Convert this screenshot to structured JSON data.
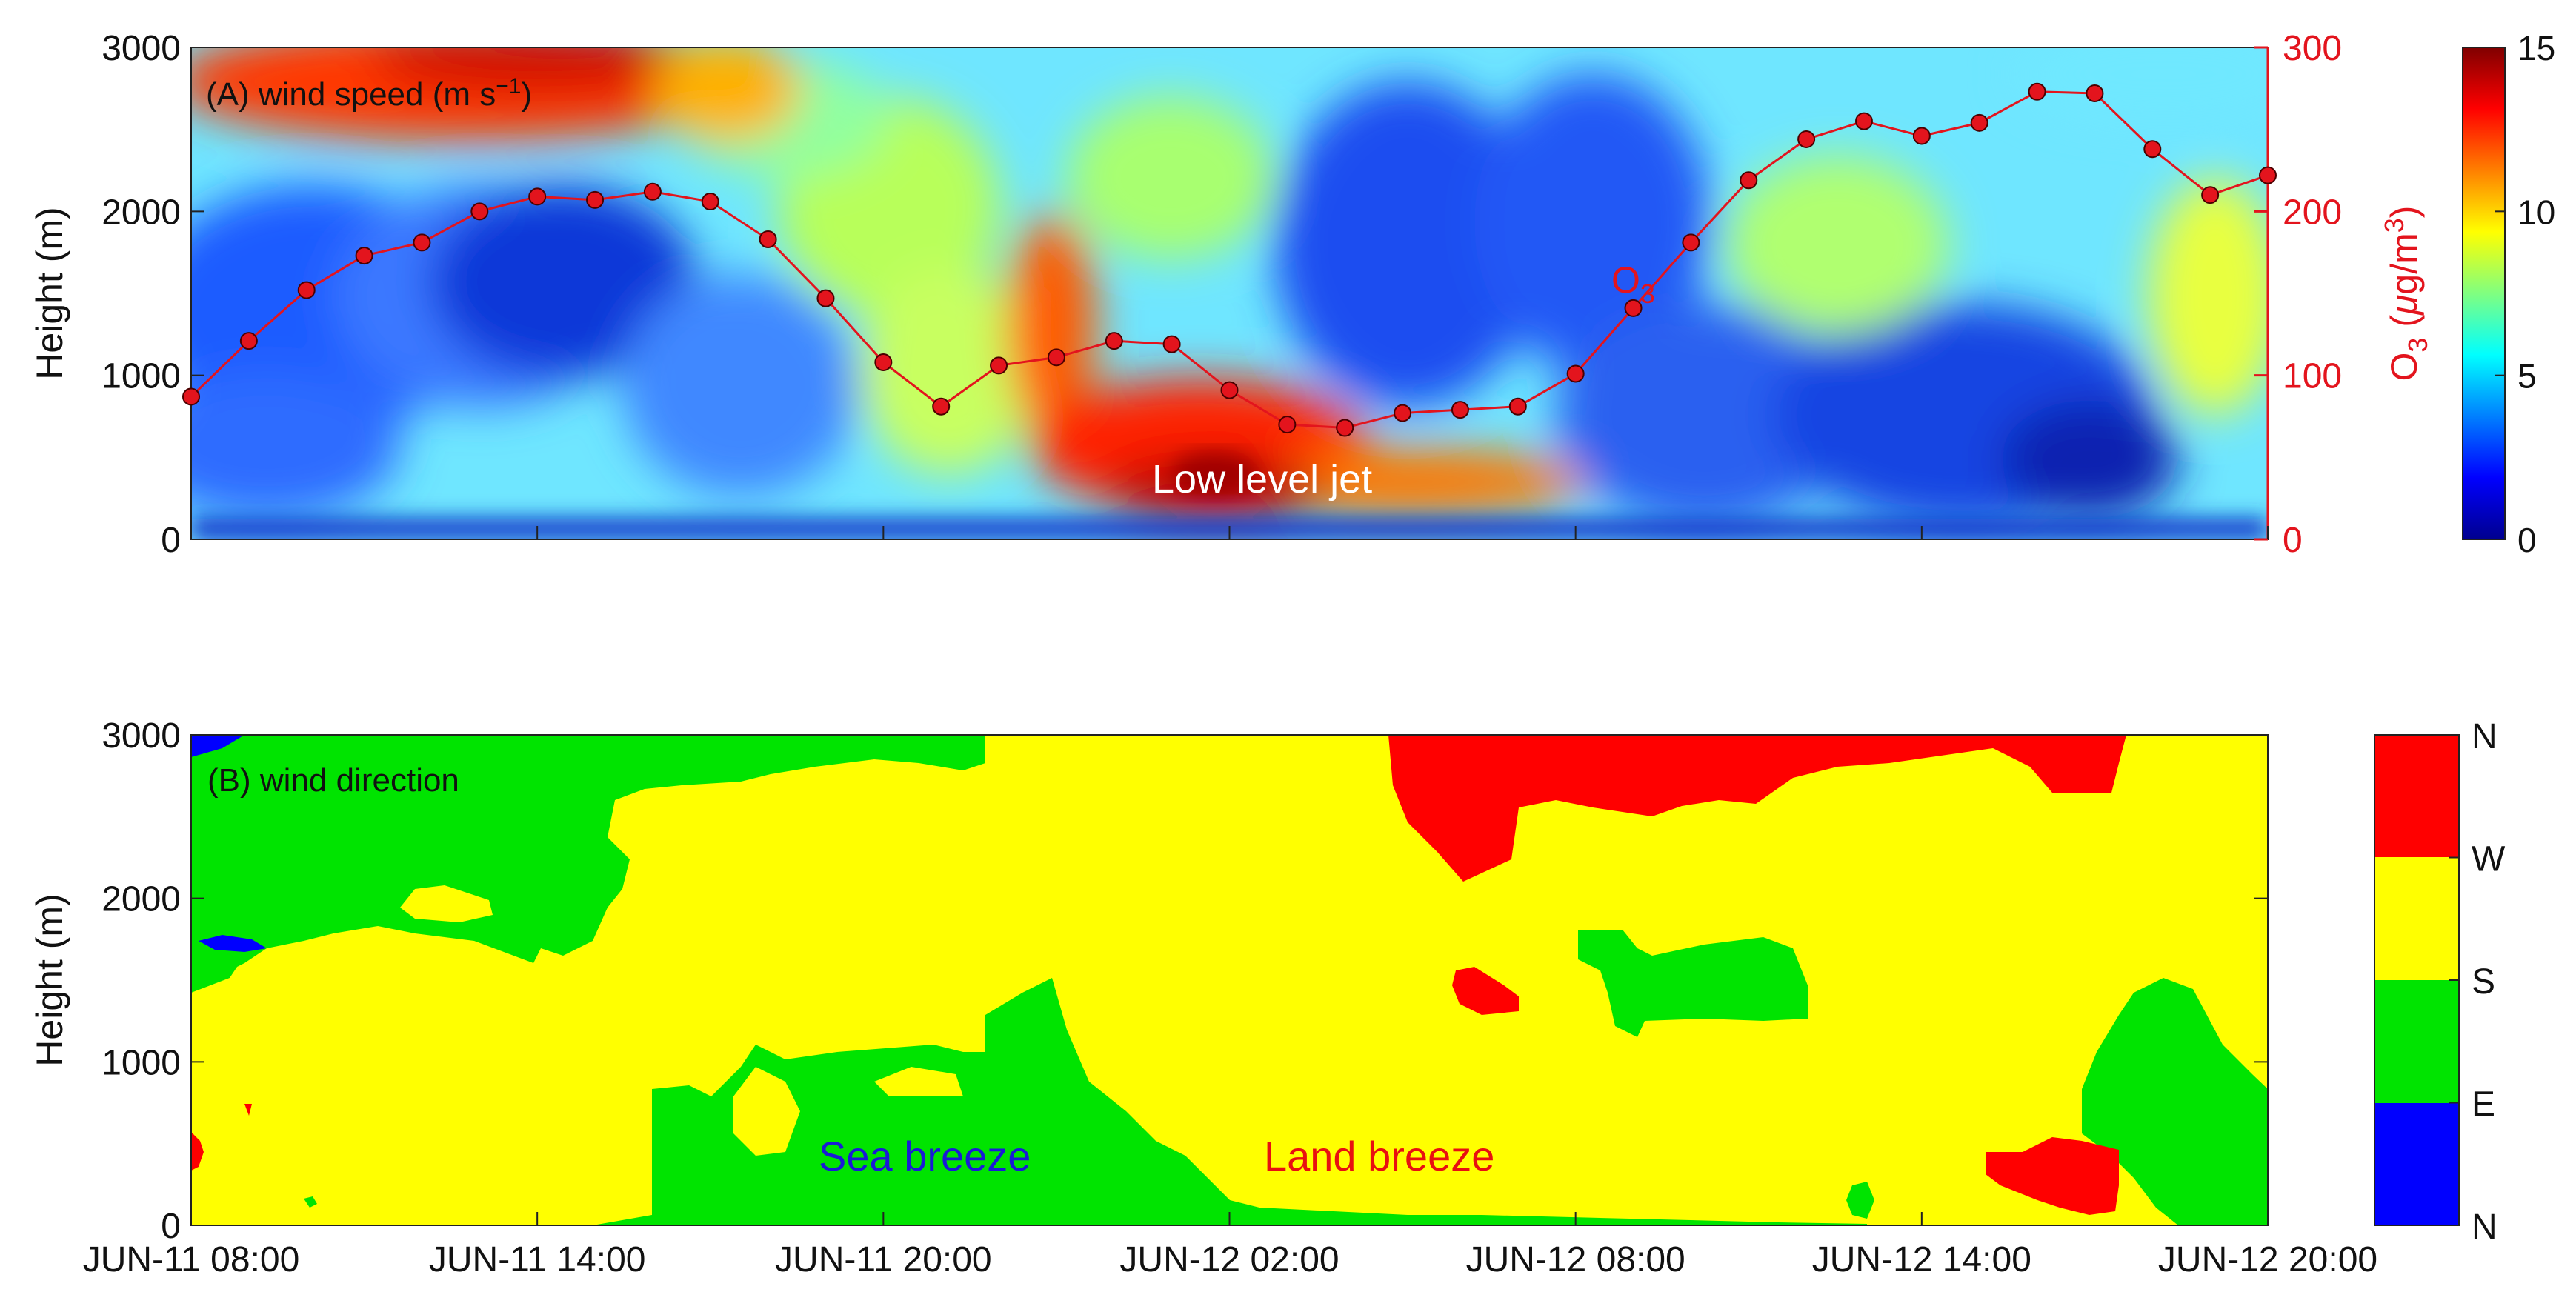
{
  "colors": {
    "o3": "#e3141d",
    "dir_north_high": "#ff0000",
    "dir_west": "#ffff00",
    "dir_south": "#00e400",
    "dir_east": "#0000ff",
    "annotation_white": "#ffffff",
    "sea_breeze": "#1a1ad6",
    "land_breeze": "#e81010"
  },
  "chart_data": [
    {
      "type": "heatmap",
      "panel_label": "(A) wind speed (m s",
      "panel_label_sup": "−1",
      "panel_label_end": ")",
      "ylabel": "Height (m)",
      "y_ticks": [
        "0",
        "1000",
        "2000",
        "3000"
      ],
      "ylim": [
        0,
        3000
      ],
      "x_ticks": [
        "JUN-11 08:00",
        "JUN-11 14:00",
        "JUN-11 20:00",
        "JUN-12 02:00",
        "JUN-12 08:00",
        "JUN-12 14:00",
        "JUN-12 20:00"
      ],
      "xlim_hours": [
        0,
        36
      ],
      "colorbar": {
        "ticks": [
          "0",
          "5",
          "10",
          "15"
        ],
        "range": [
          0,
          15
        ],
        "colormap": "jet"
      },
      "annotations": {
        "jet": "Low level jet",
        "o3_name": "O",
        "o3_sub": "3"
      },
      "o3_axis": {
        "label_main": "O",
        "label_sub": "3",
        "label_units_open": " (",
        "label_mu": "μ",
        "label_units_g": "g/m",
        "label_units_sup": "3",
        "label_units_close": ")",
        "ticks": [
          "0",
          "100",
          "200",
          "300"
        ],
        "range": [
          0,
          300
        ]
      },
      "series": [
        {
          "name": "O3",
          "x_hours": [
            0,
            1,
            2,
            3,
            4,
            5,
            6,
            7,
            8,
            9,
            10,
            11,
            12,
            13,
            14,
            15,
            16,
            17,
            18,
            19,
            20,
            21,
            22,
            23,
            24,
            25,
            26,
            27,
            28,
            29,
            30,
            31,
            32,
            33,
            34,
            35,
            36
          ],
          "values": [
            87,
            121,
            152,
            173,
            181,
            200,
            209,
            207,
            212,
            206,
            183,
            147,
            108,
            81,
            106,
            111,
            121,
            119,
            91,
            70,
            68,
            77,
            79,
            81,
            101,
            141,
            181,
            219,
            244,
            255,
            246,
            254,
            273,
            272,
            238,
            210,
            222
          ]
        }
      ]
    },
    {
      "type": "heatmap",
      "panel_label": "(B) wind direction",
      "ylabel": "Height (m)",
      "y_ticks": [
        "0",
        "1000",
        "2000",
        "3000"
      ],
      "ylim": [
        0,
        3000
      ],
      "x_ticks": [
        "JUN-11 08:00",
        "JUN-11 14:00",
        "JUN-11 20:00",
        "JUN-12 02:00",
        "JUN-12 08:00",
        "JUN-12 14:00",
        "JUN-12 20:00"
      ],
      "xlim_hours": [
        0,
        36
      ],
      "colorbar": {
        "ticks": [
          "N",
          "W",
          "S",
          "E",
          "N"
        ]
      },
      "annotations": {
        "sea_breeze": "Sea breeze",
        "land_breeze": "Land breeze"
      }
    }
  ]
}
